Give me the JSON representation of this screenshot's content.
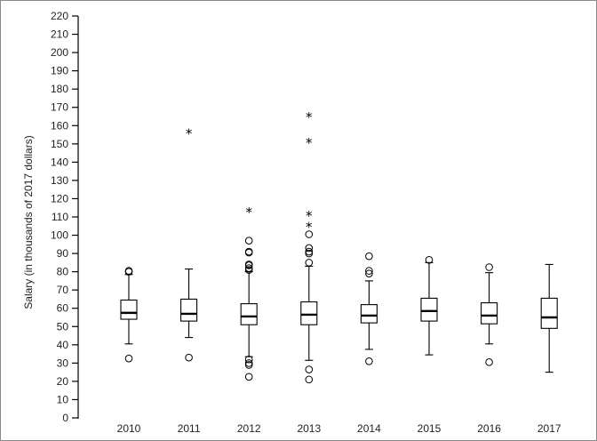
{
  "chart_data": {
    "type": "boxplot",
    "title": "",
    "xlabel": "",
    "ylabel": "Salary (in thousands of 2017 dollars)",
    "ylim": [
      0,
      220
    ],
    "yticks": [
      0,
      10,
      20,
      30,
      40,
      50,
      60,
      70,
      80,
      90,
      100,
      110,
      120,
      130,
      140,
      150,
      160,
      170,
      180,
      190,
      200,
      210,
      220
    ],
    "grid": false,
    "categories": [
      "2010",
      "2011",
      "2012",
      "2013",
      "2014",
      "2015",
      "2016",
      "2017"
    ],
    "boxes": [
      {
        "category": "2010",
        "whisker_low": 40.5,
        "q1": 54,
        "median": 57.5,
        "q3": 64.5,
        "whisker_high": 78.5,
        "outliers": [
          32.5,
          80,
          80.5
        ],
        "extremes": []
      },
      {
        "category": "2011",
        "whisker_low": 44,
        "q1": 53,
        "median": 57,
        "q3": 65,
        "whisker_high": 81.5,
        "outliers": [
          33
        ],
        "extremes": [
          156
        ]
      },
      {
        "category": "2012",
        "whisker_low": 33.5,
        "q1": 51,
        "median": 55.5,
        "q3": 62.5,
        "whisker_high": 80,
        "outliers": [
          22.5,
          29,
          30,
          32,
          81,
          82,
          83.5,
          84,
          90.5,
          91,
          97
        ],
        "extremes": [
          113
        ]
      },
      {
        "category": "2013",
        "whisker_low": 31.5,
        "q1": 51,
        "median": 56.5,
        "q3": 63.5,
        "whisker_high": 83,
        "outliers": [
          21,
          26.5,
          85,
          90,
          91,
          93,
          100.5
        ],
        "extremes": [
          105,
          111,
          151,
          165
        ]
      },
      {
        "category": "2014",
        "whisker_low": 37.5,
        "q1": 52,
        "median": 56,
        "q3": 62,
        "whisker_high": 75,
        "outliers": [
          31,
          79,
          80.5,
          88.5
        ],
        "extremes": []
      },
      {
        "category": "2015",
        "whisker_low": 34.5,
        "q1": 53,
        "median": 58.5,
        "q3": 65.5,
        "whisker_high": 85,
        "outliers": [
          86.5
        ],
        "extremes": []
      },
      {
        "category": "2016",
        "whisker_low": 40.5,
        "q1": 51.5,
        "median": 56,
        "q3": 63,
        "whisker_high": 79.5,
        "outliers": [
          30.5,
          82.5
        ],
        "extremes": []
      },
      {
        "category": "2017",
        "whisker_low": 25,
        "q1": 49,
        "median": 55,
        "q3": 65.5,
        "whisker_high": 84,
        "outliers": [],
        "extremes": []
      }
    ]
  }
}
